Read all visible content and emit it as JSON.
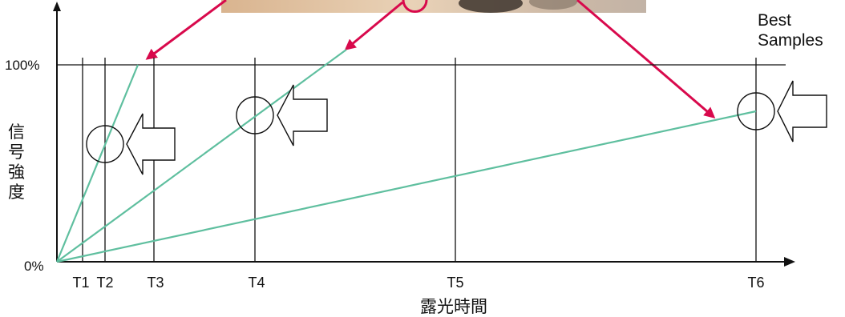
{
  "labels": {
    "y_top": "100%",
    "y_bottom": "0%",
    "y_axis": [
      "信",
      "号",
      "強",
      "度"
    ],
    "x_axis": "露光時間",
    "best_line1": "Best",
    "best_line2": "Samples",
    "ticks": [
      "T1",
      "T2",
      "T3",
      "T4",
      "T5",
      "T6"
    ]
  },
  "colors": {
    "axis": "#111111",
    "ramp": "#5fbf9f",
    "pointer": "#d8094c",
    "photo_light": "#e2c5a3",
    "photo_dark": "#5a4a3c"
  },
  "diagram": {
    "lines": [
      {
        "name": "steep",
        "x_end": "T3",
        "signal_end_percent": 100
      },
      {
        "name": "medium",
        "x_end": "T4+",
        "signal_end_percent": 100
      },
      {
        "name": "shallow",
        "x_end": "T6",
        "signal_end_percent": 78
      }
    ],
    "best_points": [
      "T2",
      "T4",
      "T6"
    ]
  }
}
